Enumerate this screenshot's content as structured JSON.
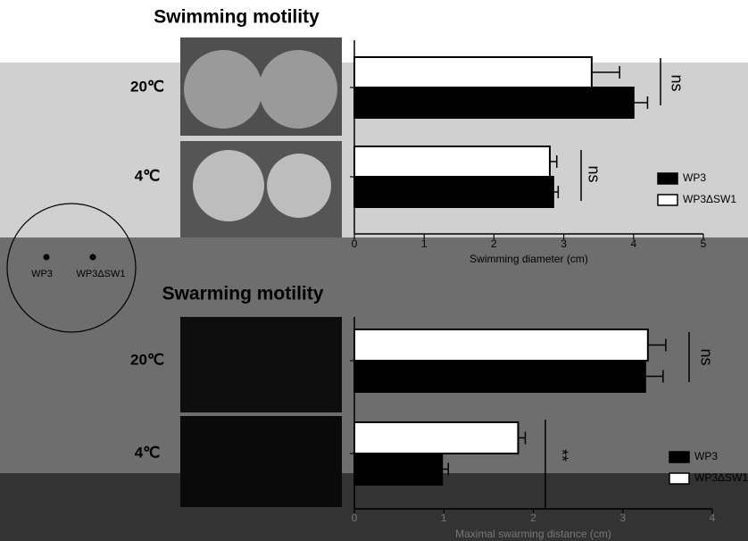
{
  "chart_data": [
    {
      "type": "bar",
      "orientation": "horizontal",
      "title": "Swimming motility",
      "categories": [
        "20℃",
        "4℃"
      ],
      "series": [
        {
          "name": "WP3",
          "color": "#000000",
          "values": [
            4.0,
            2.85
          ],
          "errors": [
            0.2,
            0.07
          ]
        },
        {
          "name": "WP3ΔSW1",
          "color": "#ffffff",
          "values": [
            3.4,
            2.8
          ],
          "errors": [
            0.4,
            0.1
          ]
        }
      ],
      "xlim": [
        0,
        5
      ],
      "xticks": [
        0,
        1,
        2,
        3,
        4,
        5
      ],
      "xlabel": "Swimming diameter (cm)",
      "annotations": [
        "ns",
        "ns"
      ]
    },
    {
      "type": "bar",
      "orientation": "horizontal",
      "title": "Swarming motility",
      "categories": [
        "20℃",
        "4℃"
      ],
      "series": [
        {
          "name": "WP3",
          "color": "#000000",
          "values": [
            3.25,
            0.98
          ],
          "errors": [
            0.2,
            0.07
          ]
        },
        {
          "name": "WP3ΔSW1",
          "color": "#ffffff",
          "values": [
            3.28,
            1.83
          ],
          "errors": [
            0.2,
            0.08
          ]
        }
      ],
      "xlim": [
        0,
        4
      ],
      "xticks": [
        0,
        1,
        2,
        3,
        4
      ],
      "xlabel": "Maximal swarming distance (cm)",
      "annotations": [
        "ns",
        "**"
      ]
    }
  ],
  "diagram": {
    "labels": [
      "WP3",
      "WP3ΔSW1"
    ]
  }
}
